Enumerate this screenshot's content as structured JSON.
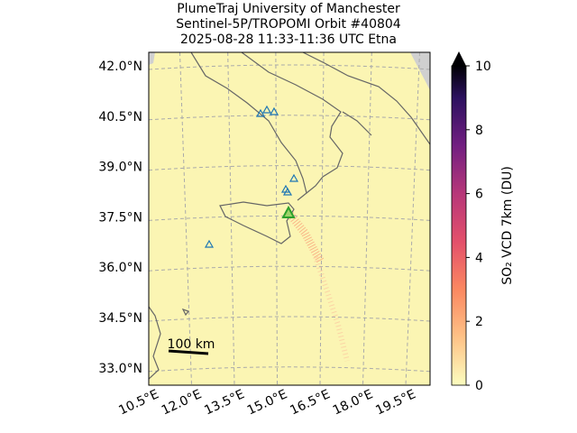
{
  "title": [
    "PlumeTraj    University of Manchester",
    "Sentinel-5P/TROPOMI Orbit #40804",
    "2025-08-28   11:33-11:36 UTC   Etna"
  ],
  "lat_labels": [
    {
      "value": 42.0,
      "label": "42.0°N"
    },
    {
      "value": 40.5,
      "label": "40.5°N"
    },
    {
      "value": 39.0,
      "label": "39.0°N"
    },
    {
      "value": 37.5,
      "label": "37.5°N"
    },
    {
      "value": 36.0,
      "label": "36.0°N"
    },
    {
      "value": 34.5,
      "label": "34.5°N"
    },
    {
      "value": 33.0,
      "label": "33.0°N"
    }
  ],
  "lon_labels": [
    {
      "value": 10.5,
      "label": "10.5°E"
    },
    {
      "value": 12.0,
      "label": "12.0°E"
    },
    {
      "value": 13.5,
      "label": "13.5°E"
    },
    {
      "value": 15.0,
      "label": "15.0°E"
    },
    {
      "value": 16.5,
      "label": "16.5°E"
    },
    {
      "value": 18.0,
      "label": "18.0°E"
    },
    {
      "value": 19.5,
      "label": "19.5°E"
    }
  ],
  "colorbar": {
    "label": "SO₂ VCD 7km (DU)",
    "lim": [
      0,
      10
    ],
    "ticks": [
      0,
      2,
      4,
      6,
      8,
      10
    ]
  },
  "scale_bar": "100 km"
}
